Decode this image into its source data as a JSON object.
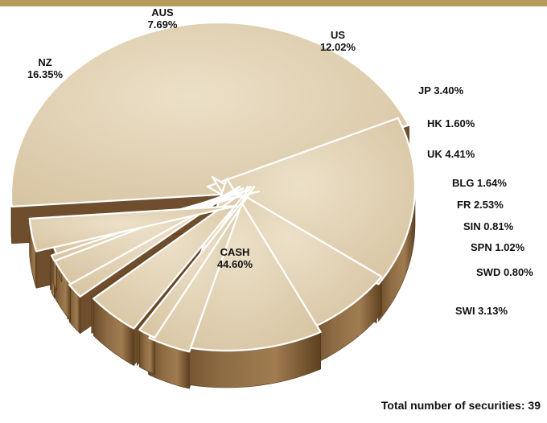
{
  "chart_data": {
    "type": "pie",
    "title": "",
    "slices": [
      {
        "label": "CASH",
        "value": 44.6,
        "value_label": "44.60%"
      },
      {
        "label": "NZ",
        "value": 16.35,
        "value_label": "16.35%"
      },
      {
        "label": "AUS",
        "value": 7.69,
        "value_label": "7.69%"
      },
      {
        "label": "US",
        "value": 12.02,
        "value_label": "12.02%"
      },
      {
        "label": "JP",
        "value": 3.4,
        "value_label": "3.40%"
      },
      {
        "label": "HK",
        "value": 1.6,
        "value_label": "1.60%"
      },
      {
        "label": "UK",
        "value": 4.41,
        "value_label": "4.41%"
      },
      {
        "label": "BLG",
        "value": 1.64,
        "value_label": "1.64%"
      },
      {
        "label": "FR",
        "value": 2.53,
        "value_label": "2.53%"
      },
      {
        "label": "SIN",
        "value": 0.81,
        "value_label": "0.81%"
      },
      {
        "label": "SPN",
        "value": 1.02,
        "value_label": "1.02%"
      },
      {
        "label": "SWD",
        "value": 0.8,
        "value_label": "0.80%"
      },
      {
        "label": "SWI",
        "value": 3.13,
        "value_label": "3.13%"
      }
    ],
    "legend": "none",
    "colors": {
      "top": "#e0d0b2",
      "side": "#7a5a34",
      "edge": "#ffffff"
    }
  },
  "footer": {
    "total_label": "Total number of securities: 39"
  }
}
